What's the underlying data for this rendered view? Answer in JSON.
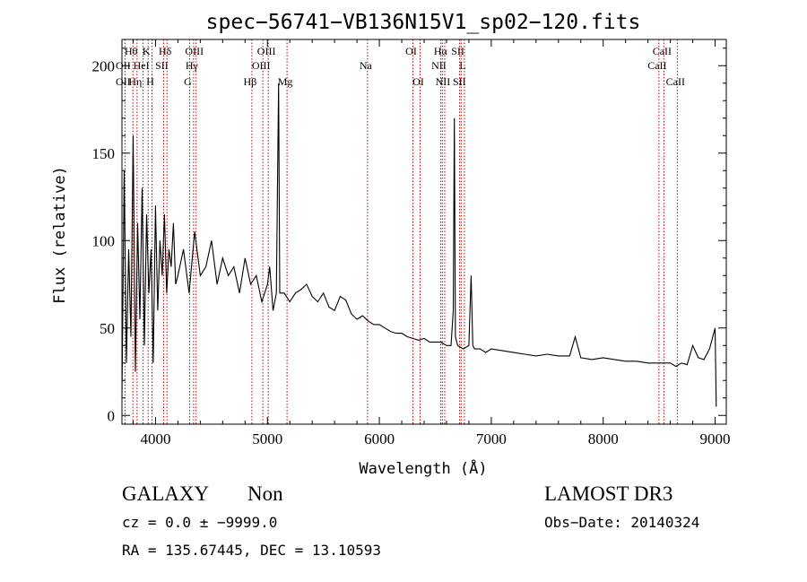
{
  "chart_data": {
    "type": "line",
    "title": "spec−56741−VB136N15V1_sp02−120.fits",
    "xlabel": "Wavelength (Å)",
    "ylabel": "Flux (relative)",
    "xlim": [
      3700,
      9100
    ],
    "ylim": [
      -5,
      215
    ],
    "x_ticks": [
      4000,
      5000,
      6000,
      7000,
      8000,
      9000
    ],
    "y_ticks": [
      0,
      50,
      100,
      150,
      200
    ],
    "line_color": "#cc0000",
    "spectrum": {
      "x": [
        3700,
        3720,
        3740,
        3760,
        3780,
        3800,
        3820,
        3840,
        3860,
        3880,
        3900,
        3920,
        3940,
        3960,
        3980,
        4000,
        4020,
        4040,
        4060,
        4080,
        4100,
        4120,
        4140,
        4160,
        4180,
        4200,
        4250,
        4300,
        4350,
        4400,
        4450,
        4500,
        4550,
        4600,
        4650,
        4700,
        4750,
        4800,
        4850,
        4900,
        4950,
        5000,
        5020,
        5050,
        5080,
        5100,
        5110,
        5150,
        5200,
        5250,
        5300,
        5350,
        5400,
        5450,
        5500,
        5550,
        5600,
        5650,
        5700,
        5750,
        5800,
        5850,
        5900,
        5950,
        6000,
        6050,
        6100,
        6150,
        6200,
        6250,
        6300,
        6350,
        6400,
        6450,
        6500,
        6550,
        6600,
        6640,
        6660,
        6670,
        6680,
        6700,
        6750,
        6800,
        6820,
        6835,
        6850,
        6900,
        6950,
        7000,
        7100,
        7200,
        7300,
        7400,
        7500,
        7600,
        7700,
        7750,
        7800,
        7900,
        8000,
        8100,
        8200,
        8300,
        8400,
        8500,
        8600,
        8650,
        8700,
        8750,
        8800,
        8850,
        8900,
        8950,
        9000,
        9010
      ],
      "y": [
        10,
        140,
        30,
        95,
        45,
        160,
        25,
        110,
        55,
        130,
        40,
        115,
        70,
        95,
        30,
        120,
        60,
        100,
        80,
        115,
        70,
        95,
        85,
        110,
        75,
        80,
        95,
        70,
        105,
        80,
        85,
        100,
        75,
        90,
        80,
        85,
        70,
        90,
        75,
        80,
        65,
        75,
        85,
        60,
        70,
        190,
        70,
        70,
        65,
        70,
        72,
        75,
        68,
        65,
        70,
        62,
        60,
        68,
        66,
        58,
        55,
        57,
        54,
        52,
        52,
        50,
        48,
        47,
        47,
        45,
        44,
        43,
        44,
        42,
        42,
        42,
        40,
        40,
        60,
        170,
        45,
        40,
        38,
        40,
        80,
        40,
        38,
        38,
        36,
        38,
        37,
        36,
        35,
        34,
        35,
        34,
        34,
        45,
        33,
        32,
        33,
        32,
        31,
        31,
        30,
        30,
        30,
        28,
        30,
        29,
        40,
        33,
        32,
        38,
        50,
        5
      ]
    },
    "lines": [
      {
        "label": "OII",
        "wavelength": 3727,
        "row": 2
      },
      {
        "label": "Hθ",
        "wavelength": 3798,
        "row": 0
      },
      {
        "label": "OII",
        "wavelength": 3727,
        "row": 1
      },
      {
        "label": "Hη",
        "wavelength": 3835,
        "row": 2
      },
      {
        "label": "HeI",
        "wavelength": 3889,
        "row": 1
      },
      {
        "label": "K",
        "wavelength": 3934,
        "row": 0
      },
      {
        "label": "H",
        "wavelength": 3969,
        "row": 2
      },
      {
        "label": "SII",
        "wavelength": 4072,
        "row": 1
      },
      {
        "label": "Hδ",
        "wavelength": 4102,
        "row": 0
      },
      {
        "label": "G",
        "wavelength": 4305,
        "row": 2
      },
      {
        "label": "OIII",
        "wavelength": 4363,
        "row": 0
      },
      {
        "label": "Hγ",
        "wavelength": 4340,
        "row": 1
      },
      {
        "label": "Hβ",
        "wavelength": 4861,
        "row": 2
      },
      {
        "label": "OIII",
        "wavelength": 4959,
        "row": 1
      },
      {
        "label": "OIII",
        "wavelength": 5007,
        "row": 0
      },
      {
        "label": "Mg",
        "wavelength": 5175,
        "row": 2
      },
      {
        "label": "Na",
        "wavelength": 5894,
        "row": 1
      },
      {
        "label": "OI",
        "wavelength": 6300,
        "row": 0
      },
      {
        "label": "OI",
        "wavelength": 6364,
        "row": 2
      },
      {
        "label": "Hα",
        "wavelength": 6563,
        "row": 0
      },
      {
        "label": "NII",
        "wavelength": 6548,
        "row": 1
      },
      {
        "label": "NII",
        "wavelength": 6584,
        "row": 2
      },
      {
        "label": "SII",
        "wavelength": 6717,
        "row": 0
      },
      {
        "label": "L",
        "wavelength": 6760,
        "row": 1
      },
      {
        "label": "SII",
        "wavelength": 6731,
        "row": 2
      },
      {
        "label": "CaII",
        "wavelength": 8542,
        "row": 0
      },
      {
        "label": "CaII",
        "wavelength": 8498,
        "row": 1
      },
      {
        "label": "CaII",
        "wavelength": 8662,
        "row": 2
      }
    ]
  },
  "line_positions": [
    3727,
    3798,
    3835,
    3889,
    3934,
    3969,
    4072,
    4102,
    4305,
    4340,
    4363,
    4861,
    4959,
    5007,
    5175,
    5894,
    6300,
    6364,
    6548,
    6563,
    6584,
    6717,
    6731,
    6760,
    8498,
    8542,
    8662
  ],
  "info": {
    "class": "GALAXY",
    "subclass": "Non",
    "survey": "LAMOST DR3",
    "cz": "cz = 0.0 ± −9999.0",
    "obs_date": "Obs−Date: 20140324",
    "coords": "RA = 135.67445, DEC =  13.10593"
  }
}
